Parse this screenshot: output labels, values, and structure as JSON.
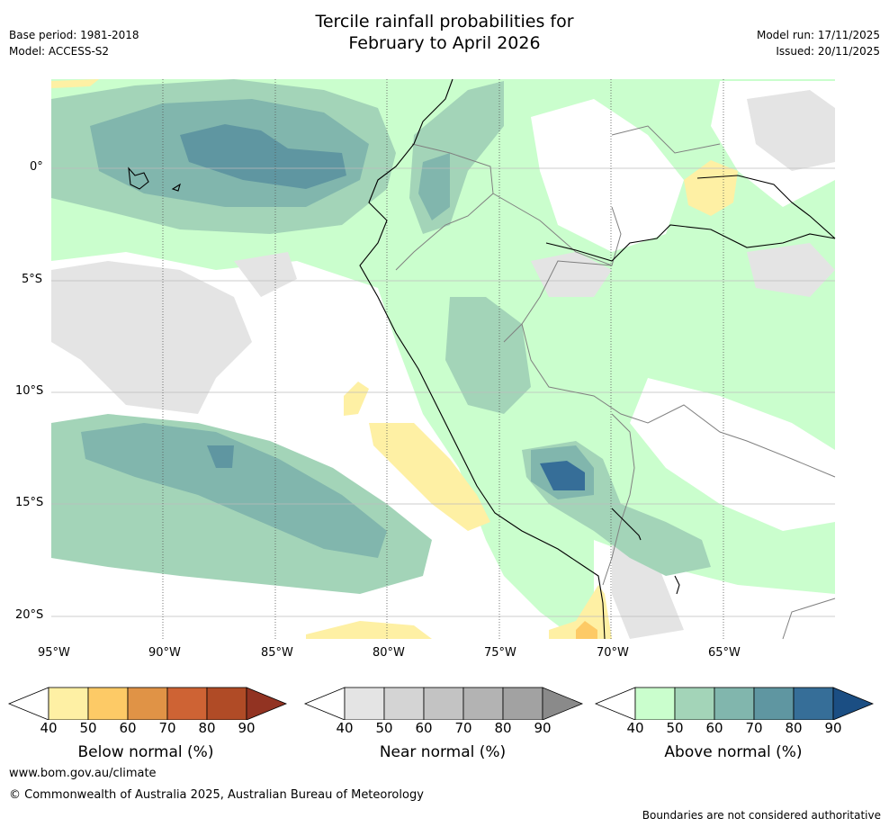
{
  "title_line1": "Tercile rainfall probabilities for",
  "title_line2": "February to April 2026",
  "meta_left": {
    "base_period": "Base period: 1981-2018",
    "model": "Model: ACCESS-S2"
  },
  "meta_right": {
    "model_run": "Model run: 17/11/2025",
    "issued": "Issued: 20/11/2025"
  },
  "axes": {
    "lon_labels": [
      "95°W",
      "90°W",
      "85°W",
      "80°W",
      "75°W",
      "70°W",
      "65°W"
    ],
    "lat_labels": [
      "0°",
      "5°S",
      "10°S",
      "15°S",
      "20°S"
    ]
  },
  "colorbars": [
    {
      "name": "below",
      "label": "Below normal (%)",
      "ticks": [
        "40",
        "50",
        "60",
        "70",
        "80",
        "90"
      ],
      "colors": [
        "#ffffff",
        "#fef0a4",
        "#fdca66",
        "#e09346",
        "#ce6334",
        "#b04b26",
        "#923322"
      ]
    },
    {
      "name": "near",
      "label": "Near normal (%)",
      "ticks": [
        "40",
        "50",
        "60",
        "70",
        "80",
        "90"
      ],
      "colors": [
        "#ffffff",
        "#e4e4e4",
        "#d4d4d4",
        "#c3c3c3",
        "#b3b3b3",
        "#a2a2a2",
        "#8a8a8a"
      ]
    },
    {
      "name": "above",
      "label": "Above normal (%)",
      "ticks": [
        "40",
        "50",
        "60",
        "70",
        "80",
        "90"
      ],
      "colors": [
        "#ffffff",
        "#cafecd",
        "#a3d4b8",
        "#81b6ad",
        "#5f96a1",
        "#366e98",
        "#1b4e83"
      ]
    }
  ],
  "footer": {
    "url": "www.bom.gov.au/climate",
    "copyright": "© Commonwealth of Australia 2025, Australian Bureau of Meteorology",
    "disclaimer": "Boundaries are not considered authoritative"
  },
  "palette": {
    "land_line": "#000000",
    "border_line": "#808080",
    "grid_line": "#bcbcbc"
  }
}
